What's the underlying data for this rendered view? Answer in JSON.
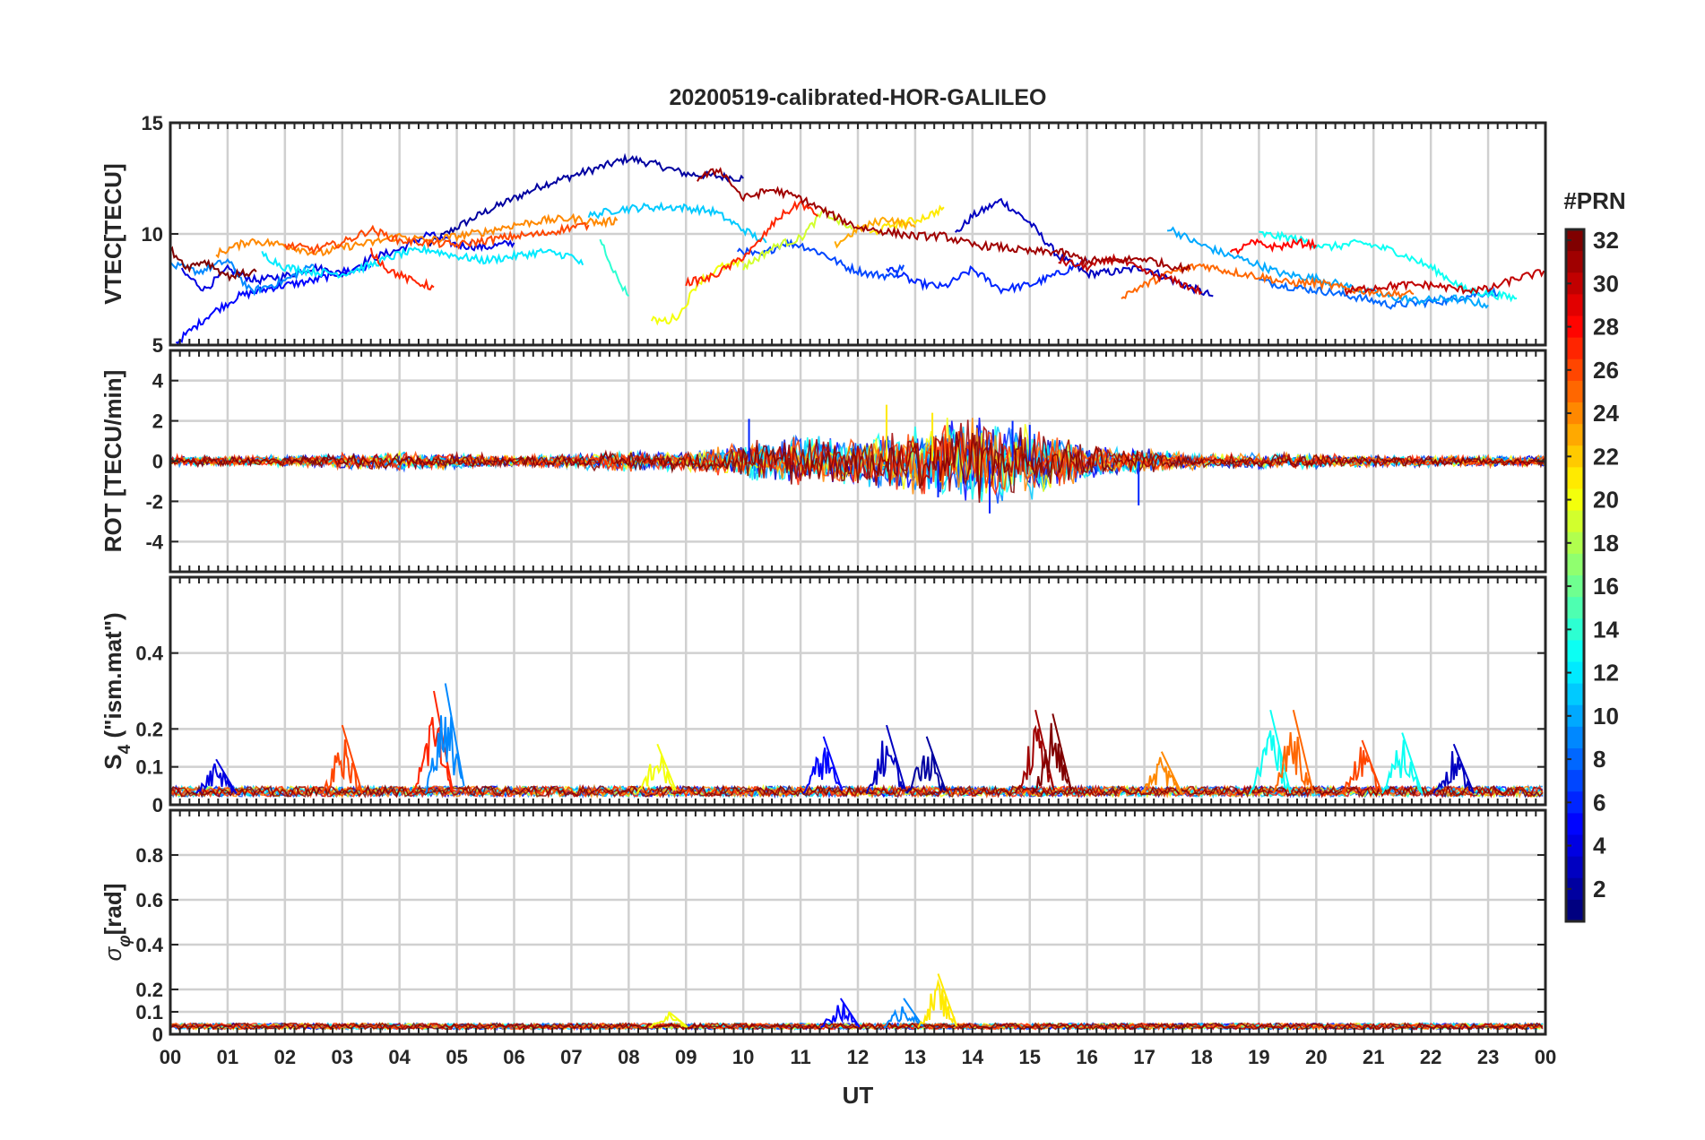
{
  "chart_data": {
    "type": "line",
    "title": "20200519-calibrated-HOR-GALILEO",
    "xlabel": "UT",
    "x_tick_labels": [
      "00",
      "01",
      "02",
      "03",
      "04",
      "05",
      "06",
      "07",
      "08",
      "09",
      "10",
      "11",
      "12",
      "13",
      "14",
      "15",
      "16",
      "17",
      "18",
      "19",
      "20",
      "21",
      "22",
      "23",
      "00"
    ],
    "xlim": [
      0,
      24
    ],
    "colorbar": {
      "label": "#PRN",
      "colormap": "jet",
      "range": [
        1,
        32
      ],
      "tick_labels": [
        "2",
        "4",
        "6",
        "8",
        "10",
        "12",
        "14",
        "16",
        "18",
        "20",
        "22",
        "24",
        "26",
        "28",
        "30",
        "32"
      ]
    },
    "panels": [
      {
        "id": "vtec",
        "ylabel": "VTEC[TECU]",
        "ylim": [
          5,
          15
        ],
        "y_ticks": [
          5,
          10,
          15
        ],
        "y_tick_labels": [
          "5",
          "10",
          "15"
        ],
        "series": [
          {
            "prn": 2,
            "t": [
              4.5,
              5,
              5.5,
              6,
              6.5,
              7,
              7.5,
              8,
              8.5,
              9,
              9.5,
              10
            ],
            "values": [
              9.5,
              10.3,
              11,
              11.6,
              12.2,
              12.6,
              13,
              13.4,
              13.1,
              12.7,
              12.6,
              12.5
            ]
          },
          {
            "prn": 3,
            "t": [
              13.7,
              14,
              14.5,
              15,
              15.5,
              16,
              16.5,
              17,
              17.5,
              18,
              18.2
            ],
            "values": [
              10,
              10.8,
              11.5,
              10.5,
              9,
              8.2,
              8.3,
              8.5,
              7.9,
              7.4,
              7.2
            ]
          },
          {
            "prn": 4,
            "t": [
              0.2,
              0.6,
              1,
              1.5,
              2,
              2.5,
              3,
              3.5,
              4,
              4.5,
              5,
              5.5,
              6
            ],
            "values": [
              8.3,
              7.5,
              8.4,
              7.9,
              8.1,
              8.5,
              8.2,
              8.9,
              9.3,
              10,
              9.5,
              9.4,
              9.6
            ]
          },
          {
            "prn": 5,
            "t": [
              0.1,
              0.7,
              1.2,
              1.8,
              2.5,
              3,
              3.5
            ],
            "values": [
              5.1,
              6.4,
              7.2,
              7.6,
              7.9,
              8.3,
              8.5
            ]
          },
          {
            "prn": 6,
            "t": [
              12.5,
              13,
              13.5,
              14,
              14.5,
              15,
              15.5,
              16
            ],
            "values": [
              8.5,
              7.8,
              7.6,
              8.4,
              7.5,
              7.7,
              8.2,
              8.8
            ]
          },
          {
            "prn": 7,
            "t": [
              9.9,
              10.3,
              10.7,
              11,
              11.4,
              11.8,
              12.2,
              12.6,
              12.8
            ],
            "values": [
              9.3,
              9,
              9.6,
              9.5,
              9.1,
              8.5,
              8.2,
              8.1,
              8.6
            ]
          },
          {
            "prn": 8,
            "t": [
              19,
              19.6,
              20.2,
              20.8,
              21.3,
              21.8,
              22.3,
              22.8,
              23.2
            ],
            "values": [
              7.9,
              7.6,
              7.4,
              7.1,
              6.8,
              6.9,
              7,
              7.3,
              7.4
            ]
          },
          {
            "prn": 9,
            "t": [
              0,
              0.5,
              1,
              1.4,
              2,
              2.5
            ],
            "values": [
              8.6,
              8.3,
              8.8,
              7.4,
              7.9,
              8.6
            ]
          },
          {
            "prn": 10,
            "t": [
              17.4,
              17.9,
              18.4,
              18.9,
              19.4,
              20,
              20.6,
              21.2,
              21.8,
              22.4,
              23
            ],
            "values": [
              10.3,
              9.6,
              9.1,
              8.7,
              8.2,
              8,
              7.6,
              7.2,
              7,
              7.1,
              6.8
            ]
          },
          {
            "prn": 11,
            "t": [
              7.3,
              7.8,
              8.3,
              8.9,
              9.5,
              10,
              10.4
            ],
            "values": [
              10.8,
              11.1,
              11.2,
              11.2,
              11,
              10.2,
              9.6
            ]
          },
          {
            "prn": 12,
            "t": [
              1.6,
              2,
              2.5,
              3,
              3.5,
              4,
              4.5,
              5,
              5.5,
              6,
              6.5,
              7,
              7.2
            ],
            "values": [
              9.1,
              8.5,
              8.3,
              8.2,
              8.6,
              9.1,
              9.3,
              9,
              8.8,
              9,
              9.2,
              9,
              8.6
            ]
          },
          {
            "prn": 13,
            "t": [
              19,
              19.6,
              20.2,
              20.8,
              21.4,
              22,
              22.6,
              23,
              23.5
            ],
            "values": [
              10,
              9.8,
              9.4,
              9.6,
              9.2,
              8.5,
              7.5,
              7.3,
              7.1
            ]
          },
          {
            "prn": 14,
            "t": [
              7.5,
              7.8,
              8
            ],
            "values": [
              9.8,
              8,
              7.2
            ]
          },
          {
            "prn": 19,
            "t": [
              10,
              10.6,
              11,
              11.4,
              11.9
            ],
            "values": [
              8.5,
              9.5,
              9.8,
              11,
              10.2
            ]
          },
          {
            "prn": 21,
            "t": [
              12.2,
              12.6,
              13,
              13.3,
              13.5
            ],
            "values": [
              10,
              10.4,
              10.6,
              10.9,
              11.2
            ]
          },
          {
            "prn": 20,
            "t": [
              8.4,
              8.7,
              8.9,
              9.2,
              9.6,
              10
            ],
            "values": [
              6.1,
              6.1,
              6.4,
              7.8,
              8.5,
              8.7
            ]
          },
          {
            "prn": 23,
            "t": [
              11.6,
              12,
              12.5,
              13
            ],
            "values": [
              9.5,
              10.2,
              10.7,
              10.3
            ]
          },
          {
            "prn": 24,
            "t": [
              0.8,
              1.4,
              2,
              2.6,
              3,
              3.5,
              4,
              4.5,
              5,
              5.5,
              6,
              6.5,
              7,
              7.5,
              7.8
            ],
            "values": [
              9.1,
              9.7,
              9.5,
              9.1,
              9.4,
              9.6,
              9.9,
              9.7,
              9.9,
              10.1,
              10.4,
              10.6,
              10.7,
              10.5,
              10.6
            ]
          },
          {
            "prn": 25,
            "t": [
              16.6,
              17,
              17.5,
              18,
              18.5,
              19,
              19.5,
              20,
              20.6,
              21,
              21.4,
              21.7
            ],
            "values": [
              7.2,
              7.7,
              8.3,
              8.6,
              8.3,
              8.1,
              7.8,
              7.8,
              7.5,
              7.4,
              7.3,
              7.3
            ]
          },
          {
            "prn": 26,
            "t": [
              2,
              2.5,
              3,
              3.5,
              4,
              4.5,
              5,
              5.5,
              6,
              6.5,
              7,
              7.3
            ],
            "values": [
              9.5,
              9.3,
              9.6,
              10.2,
              9.7,
              9.6,
              9.5,
              9.7,
              9.9,
              10,
              10.3,
              10.4
            ]
          },
          {
            "prn": 27,
            "t": [
              3.5,
              3.8,
              4.2,
              4.6
            ],
            "values": [
              9.2,
              8.4,
              7.9,
              7.6
            ]
          },
          {
            "prn": 28,
            "t": [
              18.5,
              18.9,
              19.3,
              19.7,
              20
            ],
            "values": [
              9.1,
              9.6,
              9.4,
              9.6,
              9.5
            ]
          },
          {
            "prn": 27,
            "t": [
              9,
              9.4,
              9.8,
              10.2,
              10.6,
              11,
              11.3
            ],
            "values": [
              7.8,
              8,
              8.6,
              9.4,
              10.7,
              11.4,
              10.8
            ]
          },
          {
            "prn": 30,
            "t": [
              15.5,
              16,
              16.5,
              17,
              17.5,
              18
            ],
            "values": [
              8.8,
              8.5,
              8.9,
              8.3,
              7.9,
              7.4
            ]
          },
          {
            "prn": 30,
            "t": [
              20.5,
              21,
              21.5,
              22,
              22.5,
              23,
              23.5,
              24
            ],
            "values": [
              7.4,
              7.6,
              7.7,
              7.7,
              7.5,
              7.5,
              8,
              8.3
            ]
          },
          {
            "prn": 31,
            "t": [
              9.2,
              9.6,
              10,
              10.5,
              11,
              11.5,
              12,
              12.5,
              13,
              13.5,
              14,
              14.5,
              15,
              15.5,
              16,
              16.5,
              17,
              17.4,
              17.8
            ],
            "values": [
              12.5,
              12.9,
              11.6,
              12,
              11.6,
              10.9,
              10.3,
              10.1,
              9.9,
              9.9,
              9.5,
              9.4,
              9.2,
              9.2,
              8.8,
              8.8,
              8.9,
              8.6,
              8.4
            ]
          },
          {
            "prn": 32,
            "t": [
              0,
              0.3,
              0.6,
              1,
              1.5
            ],
            "values": [
              9.3,
              8.5,
              8.8,
              8.1,
              8.3
            ]
          }
        ]
      },
      {
        "id": "rot",
        "ylabel": "ROT [TECU/min]",
        "ylim": [
          -5.5,
          5.5
        ],
        "y_ticks": [
          -4,
          -2,
          0,
          2,
          4
        ],
        "y_tick_labels": [
          "-4",
          "-2",
          "0",
          "2",
          "4"
        ],
        "envelope": {
          "hours": [
            0,
            1,
            2,
            3,
            4,
            5,
            6,
            7,
            8,
            9,
            10,
            11,
            12,
            13,
            14,
            15,
            16,
            17,
            18,
            19,
            20,
            21,
            22,
            23,
            24
          ],
          "amplitude": [
            0.3,
            0.3,
            0.3,
            0.4,
            0.5,
            0.4,
            0.3,
            0.4,
            0.6,
            0.5,
            1.0,
            1.3,
            1.3,
            1.9,
            2.4,
            2.0,
            0.9,
            0.7,
            0.4,
            0.4,
            0.4,
            0.3,
            0.3,
            0.3,
            0.3
          ]
        },
        "peaks": [
          {
            "t": 10.1,
            "value": 2.1
          },
          {
            "t": 12.5,
            "value": 2.8
          },
          {
            "t": 13.3,
            "value": 2.4
          },
          {
            "t": 13.4,
            "value": -1.8
          },
          {
            "t": 14.3,
            "value": -2.6
          },
          {
            "t": 14.7,
            "value": 2.0
          },
          {
            "t": 15.0,
            "value": 1.8
          },
          {
            "t": 16.9,
            "value": -2.2
          }
        ]
      },
      {
        "id": "s4",
        "ylabel": "S4 (\"ism.mat\")",
        "ylabel_main": "S",
        "ylabel_sub": "4",
        "ylabel_rest": " (\"ism.mat\")",
        "ylim": [
          0,
          0.6
        ],
        "y_ticks": [
          0,
          0.1,
          0.2,
          0.4
        ],
        "y_tick_labels": [
          "0",
          "0.1",
          "0.2",
          "0.4"
        ],
        "baseline": 0.03,
        "bursts": [
          {
            "t": 0.8,
            "value": 0.12,
            "prn": 4
          },
          {
            "t": 3.0,
            "value": 0.21,
            "prn": 26
          },
          {
            "t": 4.6,
            "value": 0.3,
            "prn": 27
          },
          {
            "t": 4.8,
            "value": 0.32,
            "prn": 9
          },
          {
            "t": 8.5,
            "value": 0.16,
            "prn": 20
          },
          {
            "t": 11.4,
            "value": 0.18,
            "prn": 5
          },
          {
            "t": 12.5,
            "value": 0.21,
            "prn": 3
          },
          {
            "t": 13.2,
            "value": 0.18,
            "prn": 2
          },
          {
            "t": 15.1,
            "value": 0.25,
            "prn": 31
          },
          {
            "t": 15.4,
            "value": 0.24,
            "prn": 32
          },
          {
            "t": 17.3,
            "value": 0.14,
            "prn": 24
          },
          {
            "t": 19.2,
            "value": 0.25,
            "prn": 13
          },
          {
            "t": 19.6,
            "value": 0.25,
            "prn": 25
          },
          {
            "t": 20.8,
            "value": 0.17,
            "prn": 26
          },
          {
            "t": 21.5,
            "value": 0.19,
            "prn": 13
          },
          {
            "t": 22.4,
            "value": 0.16,
            "prn": 3
          }
        ]
      },
      {
        "id": "sigma_phi",
        "ylabel": "σφ[rad]",
        "ylabel_main": "σ",
        "ylabel_sub": "φ",
        "ylabel_rest": "[rad]",
        "ylim": [
          0,
          1
        ],
        "y_ticks": [
          0,
          0.1,
          0.2,
          0.4,
          0.6,
          0.8
        ],
        "y_tick_labels": [
          "0",
          "0.1",
          "0.2",
          "0.4",
          "0.6",
          "0.8"
        ],
        "baseline": 0.03,
        "bursts": [
          {
            "t": 8.7,
            "value": 0.1,
            "prn": 20
          },
          {
            "t": 11.7,
            "value": 0.16,
            "prn": 5
          },
          {
            "t": 12.8,
            "value": 0.16,
            "prn": 9
          },
          {
            "t": 13.4,
            "value": 0.27,
            "prn": 21
          }
        ]
      }
    ]
  }
}
